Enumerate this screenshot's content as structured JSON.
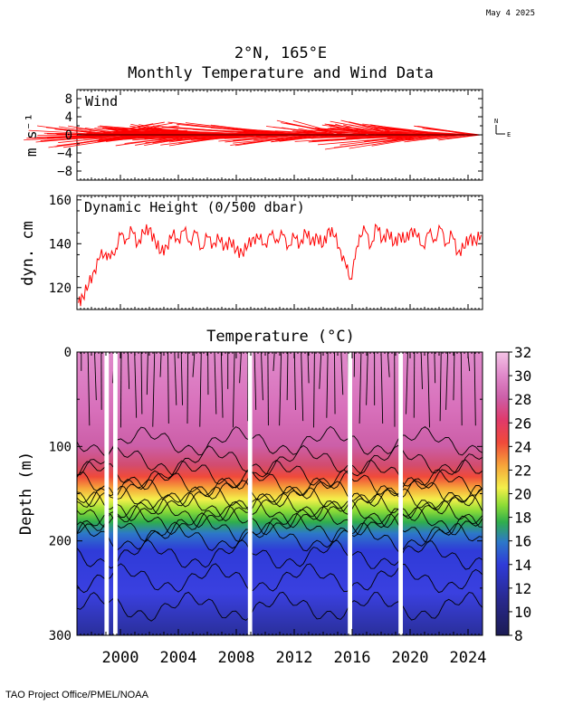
{
  "print_date": "May  4 2025",
  "footer_credit": "TAO Project Office/PMEL/NOAA",
  "title_line1": "2°N, 165°E",
  "title_line2": "Monthly Temperature and Wind Data",
  "colors": {
    "wind": "#ff0000",
    "dynamic_height": "#ff0000",
    "axis": "#000000",
    "gap": "#ffffff"
  },
  "chart_data": [
    {
      "id": "wind",
      "type": "line",
      "subtype": "vector-stick-plot",
      "panel_label": "Wind",
      "ylabel": "m s⁻¹",
      "ylim": [
        -10,
        10
      ],
      "yticks": [
        "8",
        "4",
        "0",
        "−4",
        "−8"
      ],
      "ytick_values": [
        8,
        4,
        0,
        -4,
        -8
      ],
      "xlim": [
        1997.0,
        2025.0
      ],
      "compass": {
        "north": "N",
        "east": "E"
      },
      "series_note": "monthly wind vectors (stick plot), mostly westerly-pointing with mean speed about 3 m/s",
      "mean_u_estimate": -3,
      "mean_v_estimate": 0,
      "annual_sticks": [
        {
          "year": 1998,
          "u": 3,
          "v": 1.5
        },
        {
          "year": 1999,
          "u": -3,
          "v": 0.5
        },
        {
          "year": 2000,
          "u": -3,
          "v": 0
        },
        {
          "year": 2001,
          "u": -3,
          "v": -1.5
        },
        {
          "year": 2002,
          "u": -2,
          "v": 0
        },
        {
          "year": 2003,
          "u": -3,
          "v": 0
        },
        {
          "year": 2004,
          "u": -2,
          "v": 1
        },
        {
          "year": 2005,
          "u": -3,
          "v": -1
        },
        {
          "year": 2006,
          "u": -4,
          "v": 0.5
        },
        {
          "year": 2007,
          "u": -3,
          "v": 0
        },
        {
          "year": 2008,
          "u": -4,
          "v": -1
        },
        {
          "year": 2010,
          "u": -4,
          "v": 0.5
        },
        {
          "year": 2011,
          "u": -4,
          "v": 1.5
        },
        {
          "year": 2012,
          "u": -3,
          "v": 0
        },
        {
          "year": 2013,
          "u": -3,
          "v": -1
        },
        {
          "year": 2014,
          "u": -2,
          "v": 0
        },
        {
          "year": 2015,
          "u": -3,
          "v": 2
        },
        {
          "year": 2017,
          "u": -2,
          "v": 1
        },
        {
          "year": 2019,
          "u": -3,
          "v": 2
        },
        {
          "year": 2020,
          "u": -4,
          "v": 0
        },
        {
          "year": 2021,
          "u": -4,
          "v": -2
        },
        {
          "year": 2022,
          "u": -3,
          "v": 1
        },
        {
          "year": 2023,
          "u": -3,
          "v": 0
        },
        {
          "year": 2024,
          "u": -2,
          "v": 0.5
        }
      ]
    },
    {
      "id": "dynamic_height",
      "type": "line",
      "panel_label": "Dynamic Height (0/500 dbar)",
      "ylabel": "dyn. cm",
      "ylim": [
        110,
        162
      ],
      "yticks": [
        "160",
        "140",
        "120"
      ],
      "ytick_values": [
        160,
        140,
        120
      ],
      "xlim": [
        1997.0,
        2025.0
      ],
      "series": [
        {
          "x": [
            1997.1,
            1997.4,
            1997.8,
            1998.2,
            1998.6,
            1999.0,
            1999.3,
            1999.7,
            2000.0,
            2000.4,
            2000.8,
            2001.2,
            2001.6,
            2002.0,
            2002.4,
            2002.8,
            2003.2,
            2003.6,
            2004.0,
            2004.4,
            2004.8,
            2005.2,
            2005.6,
            2006.0,
            2006.4,
            2006.8,
            2007.2,
            2007.6,
            2008.0,
            2008.4,
            2008.8,
            2009.2,
            2009.6,
            2010.0,
            2010.4,
            2010.8,
            2011.2,
            2011.6,
            2012.0,
            2012.4,
            2012.8,
            2013.2,
            2013.6,
            2014.0,
            2014.4,
            2014.8,
            2015.2,
            2015.6,
            2015.9,
            2016.2,
            2016.5,
            2016.9,
            2017.3,
            2017.7,
            2018.1,
            2018.5,
            2018.9,
            2019.3,
            2019.7,
            2020.1,
            2020.5,
            2020.9,
            2021.3,
            2021.7,
            2022.1,
            2022.5,
            2022.9,
            2023.3,
            2023.7,
            2024.1,
            2024.5,
            2024.9
          ],
          "y": [
            113,
            116,
            121,
            128,
            134,
            136,
            133,
            138,
            144,
            142,
            146,
            140,
            145,
            147,
            141,
            136,
            139,
            144,
            142,
            146,
            141,
            145,
            138,
            143,
            140,
            142,
            139,
            141,
            137,
            136,
            139,
            143,
            142,
            140,
            144,
            142,
            144,
            139,
            143,
            140,
            145,
            141,
            143,
            139,
            147,
            143,
            137,
            129,
            124,
            133,
            144,
            146,
            139,
            148,
            142,
            145,
            140,
            144,
            141,
            147,
            143,
            139,
            145,
            142,
            147,
            140,
            144,
            136,
            138,
            143,
            141,
            144
          ]
        }
      ]
    },
    {
      "id": "temperature",
      "type": "heatmap",
      "title": "Temperature (°C)",
      "xlabel": "",
      "ylabel": "Depth (m)",
      "ylim": [
        0,
        300
      ],
      "yticks": [
        "0",
        "100",
        "200",
        "300"
      ],
      "ytick_values": [
        0,
        100,
        200,
        300
      ],
      "xlim": [
        1997.0,
        2025.0
      ],
      "xticks": [
        "2000",
        "2004",
        "2008",
        "2012",
        "2016",
        "2020",
        "2024"
      ],
      "xtick_values": [
        2000,
        2004,
        2008,
        2012,
        2016,
        2020,
        2024
      ],
      "colorbar": {
        "ticks": [
          "32",
          "30",
          "28",
          "26",
          "24",
          "22",
          "20",
          "18",
          "16",
          "14",
          "12",
          "10",
          "8"
        ],
        "tick_values": [
          32,
          30,
          28,
          26,
          24,
          22,
          20,
          18,
          16,
          14,
          12,
          10,
          8
        ],
        "range": [
          8,
          32
        ]
      },
      "data_gaps": [
        {
          "start": 1998.9,
          "end": 1999.2
        },
        {
          "start": 1999.5,
          "end": 1999.8
        },
        {
          "start": 2008.8,
          "end": 2009.1
        },
        {
          "start": 2015.7,
          "end": 2016.0
        },
        {
          "start": 2019.2,
          "end": 2019.5
        }
      ],
      "isotherm_depths": {
        "depths": [
          0,
          50,
          100,
          120,
          140,
          150,
          160,
          170,
          180,
          190,
          200,
          230,
          260,
          300
        ],
        "temperatures": [
          30.0,
          29.5,
          28.5,
          27.0,
          25.0,
          23.5,
          21.5,
          19.5,
          17.5,
          16.0,
          15.0,
          13.5,
          12.5,
          11.5
        ]
      }
    }
  ]
}
